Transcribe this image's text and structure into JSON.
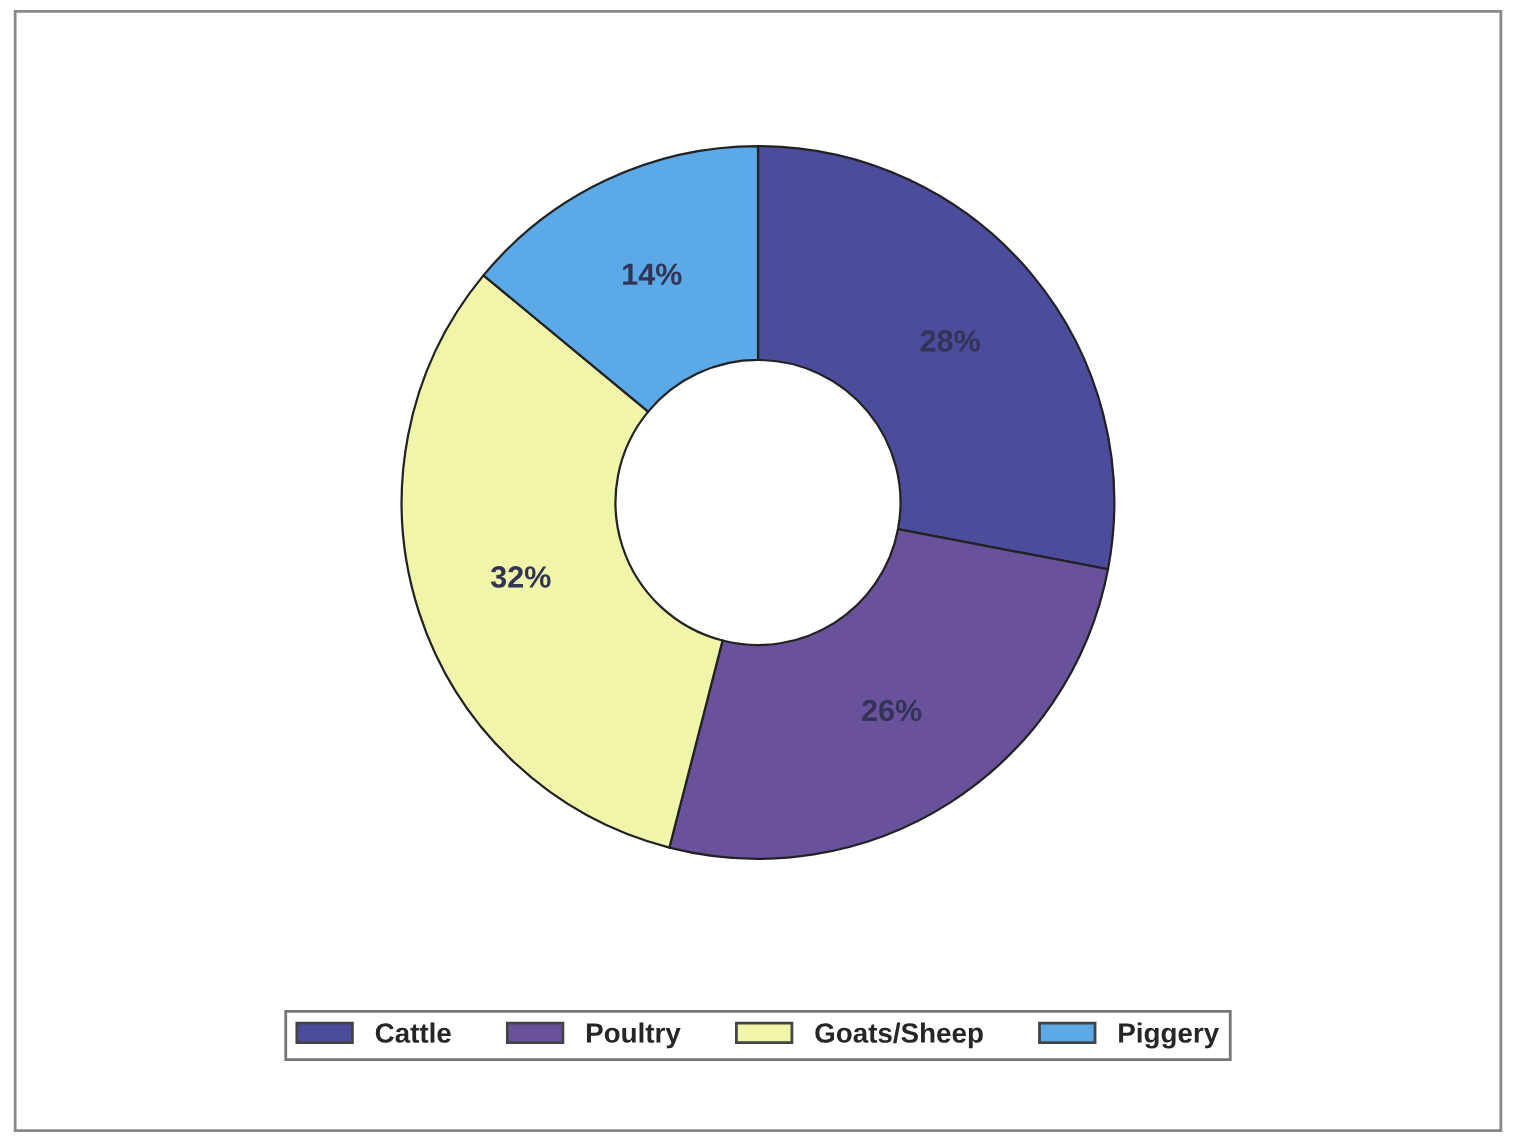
{
  "chart_data": {
    "type": "donut",
    "categories": [
      "Cattle",
      "Poultry",
      "Goats/Sheep",
      "Piggery"
    ],
    "values": [
      28,
      26,
      32,
      14
    ],
    "colors": [
      "#4b4c9c",
      "#6a519c",
      "#f1f5a9",
      "#5ba9e6"
    ],
    "value_labels": [
      "28%",
      "26%",
      "32%",
      "14%"
    ],
    "legend": "bottom"
  }
}
